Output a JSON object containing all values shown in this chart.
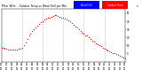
{
  "title_left": "Milw. Wthr. - Outdoor Temp vs Wind Chill per Min",
  "title_right": "(24 Hours)",
  "background_color": "#ffffff",
  "plot_bg_color": "#ffffff",
  "dot_color": "#ff0000",
  "legend_temp_color": "#ff0000",
  "legend_chill_color": "#0000ff",
  "legend_temp_label": "Outdoor Temp",
  "legend_chill_label": "Wind Chill",
  "xlim": [
    0,
    1440
  ],
  "ylim": [
    -10,
    55
  ],
  "yticks": [
    0,
    10,
    20,
    30,
    40,
    50
  ],
  "grid_color": "#bbbbbb",
  "vline_positions": [
    240,
    480,
    720,
    960,
    1200
  ],
  "temp_data_x": [
    0,
    20,
    40,
    60,
    80,
    100,
    120,
    140,
    160,
    180,
    200,
    220,
    240,
    260,
    280,
    300,
    320,
    340,
    360,
    380,
    400,
    420,
    440,
    460,
    480,
    500,
    520,
    540,
    560,
    580,
    600,
    620,
    640,
    660,
    680,
    700,
    720,
    740,
    760,
    780,
    800,
    820,
    840,
    860,
    880,
    900,
    920,
    940,
    960,
    980,
    1000,
    1020,
    1040,
    1060,
    1080,
    1100,
    1120,
    1140,
    1160,
    1180,
    1200,
    1220,
    1240,
    1260,
    1280,
    1300,
    1320,
    1340,
    1360,
    1380,
    1400,
    1420,
    1440
  ],
  "temp_data_y": [
    7,
    7,
    6,
    6,
    5,
    5,
    5,
    5,
    5,
    5,
    6,
    6,
    7,
    10,
    14,
    18,
    22,
    25,
    28,
    30,
    32,
    35,
    37,
    39,
    40,
    42,
    43,
    44,
    45,
    46,
    47,
    48,
    48,
    47,
    46,
    45,
    44,
    43,
    42,
    41,
    40,
    38,
    36,
    34,
    32,
    30,
    28,
    26,
    25,
    23,
    22,
    20,
    18,
    16,
    15,
    13,
    12,
    10,
    9,
    7,
    6,
    5,
    4,
    3,
    2,
    1,
    0,
    -1,
    -2,
    -3,
    -4,
    -5,
    -6
  ]
}
